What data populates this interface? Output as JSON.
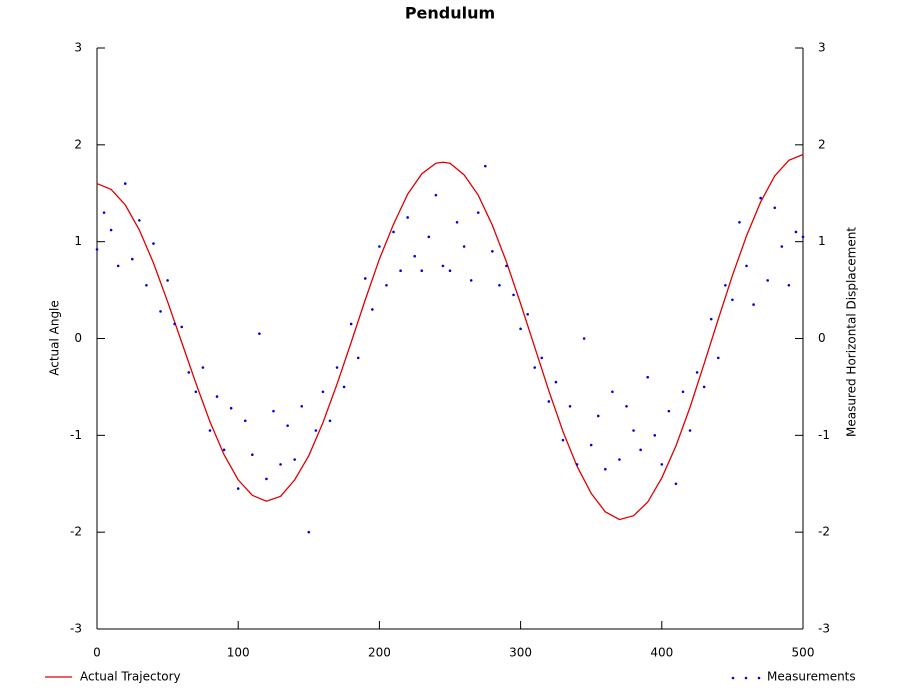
{
  "chart_data": {
    "type": "line",
    "title": "Pendulum",
    "y_label": "Actual Angle",
    "y2_label": "Measured Horizontal Displacement",
    "xlim": [
      0,
      500
    ],
    "xticks": [
      0,
      100,
      200,
      300,
      400,
      500
    ],
    "ylim": [
      -3,
      3
    ],
    "yticks": [
      -3,
      -2,
      -1,
      0,
      1,
      2,
      3
    ],
    "y2lim": [
      -3,
      3
    ],
    "y2ticks": [
      -3,
      -2,
      -1,
      0,
      1,
      2,
      3
    ],
    "series": [
      {
        "name": "Actual Trajectory",
        "type": "line",
        "color": "#e00000",
        "axis": "y",
        "x": [
          0,
          10,
          20,
          30,
          40,
          50,
          60,
          70,
          80,
          90,
          100,
          110,
          120,
          130,
          140,
          150,
          160,
          170,
          180,
          190,
          200,
          210,
          220,
          230,
          240,
          245,
          250,
          260,
          270,
          280,
          290,
          300,
          310,
          320,
          330,
          340,
          350,
          360,
          370,
          380,
          390,
          400,
          410,
          420,
          430,
          440,
          450,
          460,
          470,
          480,
          490,
          500
        ],
        "values": [
          1.6,
          1.54,
          1.38,
          1.12,
          0.78,
          0.38,
          -0.04,
          -0.46,
          -0.86,
          -1.2,
          -1.46,
          -1.62,
          -1.68,
          -1.63,
          -1.46,
          -1.21,
          -0.87,
          -0.47,
          -0.04,
          0.4,
          0.82,
          1.18,
          1.49,
          1.7,
          1.81,
          1.82,
          1.81,
          1.69,
          1.48,
          1.17,
          0.79,
          0.36,
          -0.09,
          -0.54,
          -0.96,
          -1.32,
          -1.6,
          -1.79,
          -1.87,
          -1.83,
          -1.69,
          -1.44,
          -1.11,
          -0.71,
          -0.26,
          0.2,
          0.65,
          1.06,
          1.41,
          1.68,
          1.84,
          1.9
        ]
      },
      {
        "name": "Measurements",
        "type": "scatter",
        "color": "#0000e0",
        "axis": "y2",
        "x": [
          0,
          5,
          10,
          15,
          20,
          25,
          30,
          35,
          40,
          45,
          50,
          55,
          60,
          65,
          70,
          75,
          80,
          85,
          90,
          95,
          100,
          105,
          110,
          115,
          120,
          125,
          130,
          135,
          140,
          145,
          150,
          155,
          160,
          165,
          170,
          175,
          180,
          185,
          190,
          195,
          200,
          205,
          210,
          215,
          220,
          225,
          230,
          235,
          240,
          245,
          250,
          255,
          260,
          265,
          270,
          275,
          280,
          285,
          290,
          295,
          300,
          305,
          310,
          315,
          320,
          325,
          330,
          335,
          340,
          345,
          350,
          355,
          360,
          365,
          370,
          375,
          380,
          385,
          390,
          395,
          400,
          405,
          410,
          415,
          420,
          425,
          430,
          435,
          440,
          445,
          450,
          455,
          460,
          465,
          470,
          475,
          480,
          485,
          490,
          495,
          500
        ],
        "values": [
          0.92,
          1.3,
          1.12,
          0.75,
          1.6,
          0.82,
          1.22,
          0.55,
          0.98,
          0.28,
          0.6,
          0.15,
          0.12,
          -0.35,
          -0.55,
          -0.3,
          -0.95,
          -0.6,
          -1.15,
          -0.72,
          -1.55,
          -0.85,
          -1.2,
          0.05,
          -1.45,
          -0.75,
          -1.3,
          -0.9,
          -1.25,
          -0.7,
          -2.0,
          -0.95,
          -0.55,
          -0.85,
          -0.3,
          -0.5,
          0.15,
          -0.2,
          0.62,
          0.3,
          0.95,
          0.55,
          1.1,
          0.7,
          1.25,
          0.85,
          0.7,
          1.05,
          1.48,
          0.75,
          0.7,
          1.2,
          0.95,
          0.6,
          1.3,
          1.78,
          0.9,
          0.55,
          0.75,
          0.45,
          0.1,
          0.25,
          -0.3,
          -0.2,
          -0.65,
          -0.45,
          -1.05,
          -0.7,
          -1.3,
          0.0,
          -1.1,
          -0.8,
          -1.35,
          -0.55,
          -1.25,
          -0.7,
          -0.95,
          -1.15,
          -0.4,
          -1.0,
          -1.3,
          -0.75,
          -1.5,
          -0.55,
          -0.95,
          -0.35,
          -0.5,
          0.2,
          -0.2,
          0.55,
          0.4,
          1.2,
          0.75,
          0.35,
          1.45,
          0.6,
          1.35,
          0.95,
          0.55,
          1.1,
          1.05
        ]
      }
    ]
  }
}
